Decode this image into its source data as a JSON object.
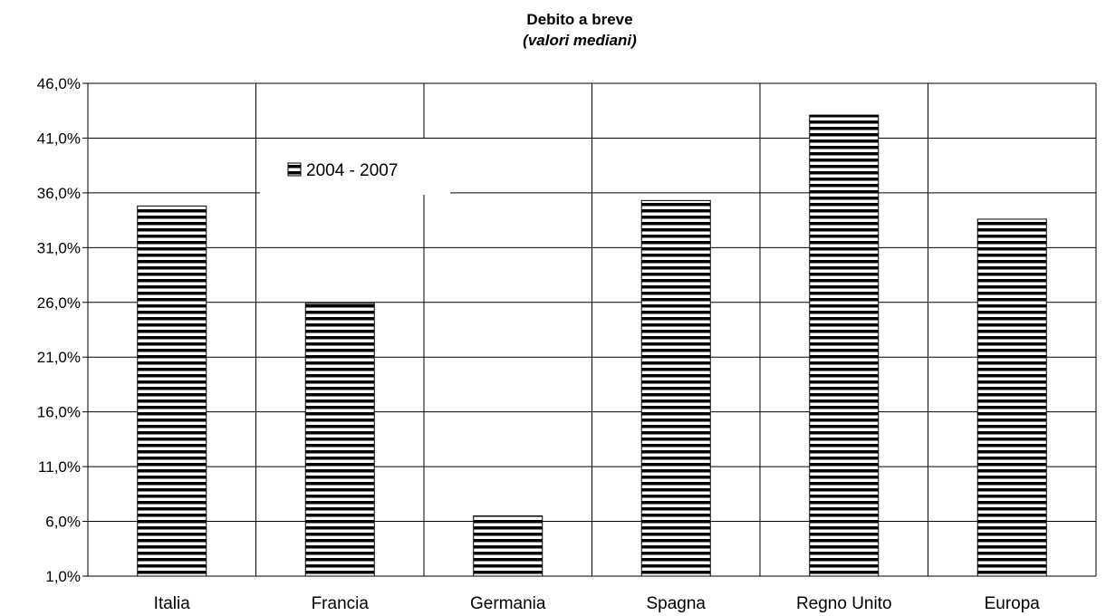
{
  "chart_data": {
    "type": "bar",
    "title": "Debito a breve",
    "subtitle": "(valori mediani)",
    "categories": [
      "Italia",
      "Francia",
      "Germania",
      "Spagna",
      "Regno Unito",
      "Europa"
    ],
    "series": [
      {
        "name": "2004 - 2007",
        "values": [
          34.8,
          25.9,
          6.5,
          35.3,
          43.1,
          33.6
        ]
      }
    ],
    "y_ticks": [
      "1,0%",
      "6,0%",
      "11,0%",
      "16,0%",
      "21,0%",
      "26,0%",
      "31,0%",
      "36,0%",
      "41,0%",
      "46,0%"
    ],
    "ylim": [
      1,
      46
    ],
    "grid": true,
    "legend_position": "upper-left",
    "bar_fill": "horizontal-stripes",
    "colors": {
      "bar_stripe": "#000000",
      "bar_bg": "#ffffff",
      "grid": "#000000"
    }
  }
}
